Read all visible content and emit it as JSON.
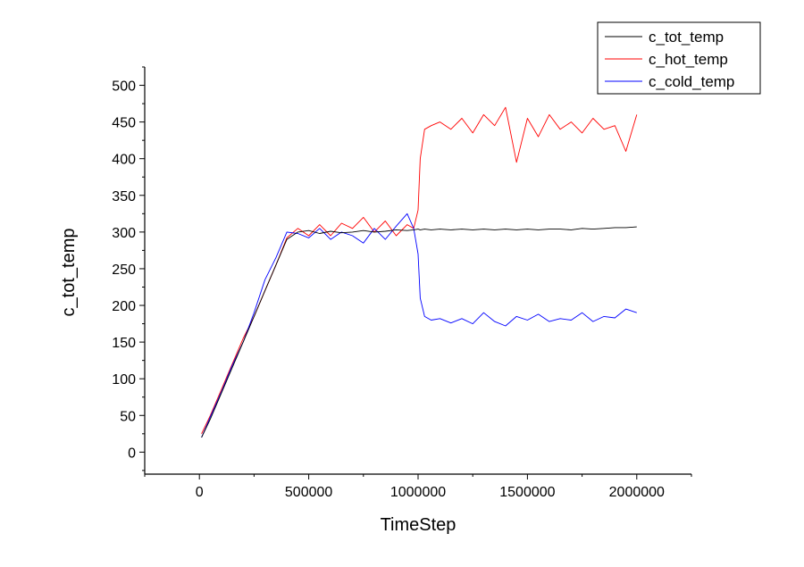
{
  "chart_data": {
    "type": "line",
    "title": "",
    "xlabel": "TimeStep",
    "ylabel": "c_tot_temp",
    "xlim": [
      -250000,
      2250000
    ],
    "ylim": [
      -30,
      525
    ],
    "x_ticks": [
      0,
      500000,
      1000000,
      1500000,
      2000000
    ],
    "x_tick_labels": [
      "0",
      "500000",
      "1000000",
      "1500000",
      "2000000"
    ],
    "y_ticks": [
      0,
      50,
      100,
      150,
      200,
      250,
      300,
      350,
      400,
      450,
      500
    ],
    "y_tick_labels": [
      "0",
      "50",
      "100",
      "150",
      "200",
      "250",
      "300",
      "350",
      "400",
      "450",
      "500"
    ],
    "grid": false,
    "legend_position": "top-right",
    "x": [
      10000,
      50000,
      100000,
      150000,
      200000,
      250000,
      300000,
      350000,
      400000,
      450000,
      500000,
      550000,
      600000,
      650000,
      700000,
      750000,
      800000,
      850000,
      900000,
      950000,
      980000,
      1000000,
      1010000,
      1030000,
      1060000,
      1100000,
      1150000,
      1200000,
      1250000,
      1300000,
      1350000,
      1400000,
      1450000,
      1500000,
      1550000,
      1600000,
      1650000,
      1700000,
      1750000,
      1800000,
      1850000,
      1900000,
      1950000,
      2000000
    ],
    "series": [
      {
        "name": "c_tot_temp",
        "color": "#000000",
        "values": [
          20,
          45,
          80,
          115,
          150,
          185,
          220,
          255,
          290,
          300,
          302,
          298,
          301,
          299,
          300,
          302,
          300,
          301,
          303,
          302,
          303,
          304,
          303,
          304,
          303,
          304,
          303,
          304,
          303,
          304,
          303,
          304,
          303,
          304,
          303,
          304,
          304,
          303,
          305,
          304,
          305,
          306,
          306,
          307
        ]
      },
      {
        "name": "c_hot_temp",
        "color": "#ff0000",
        "values": [
          25,
          50,
          85,
          120,
          155,
          185,
          220,
          255,
          292,
          305,
          295,
          310,
          295,
          312,
          305,
          320,
          300,
          315,
          295,
          310,
          305,
          330,
          400,
          440,
          445,
          450,
          440,
          455,
          435,
          460,
          445,
          470,
          395,
          455,
          430,
          460,
          440,
          450,
          435,
          455,
          440,
          445,
          410,
          460
        ]
      },
      {
        "name": "c_cold_temp",
        "color": "#0000ff",
        "values": [
          20,
          48,
          82,
          118,
          150,
          190,
          235,
          265,
          300,
          298,
          292,
          305,
          290,
          300,
          295,
          285,
          305,
          290,
          308,
          325,
          305,
          270,
          210,
          185,
          180,
          182,
          176,
          182,
          175,
          190,
          178,
          172,
          185,
          180,
          188,
          178,
          182,
          180,
          190,
          178,
          185,
          183,
          195,
          190
        ]
      }
    ]
  }
}
